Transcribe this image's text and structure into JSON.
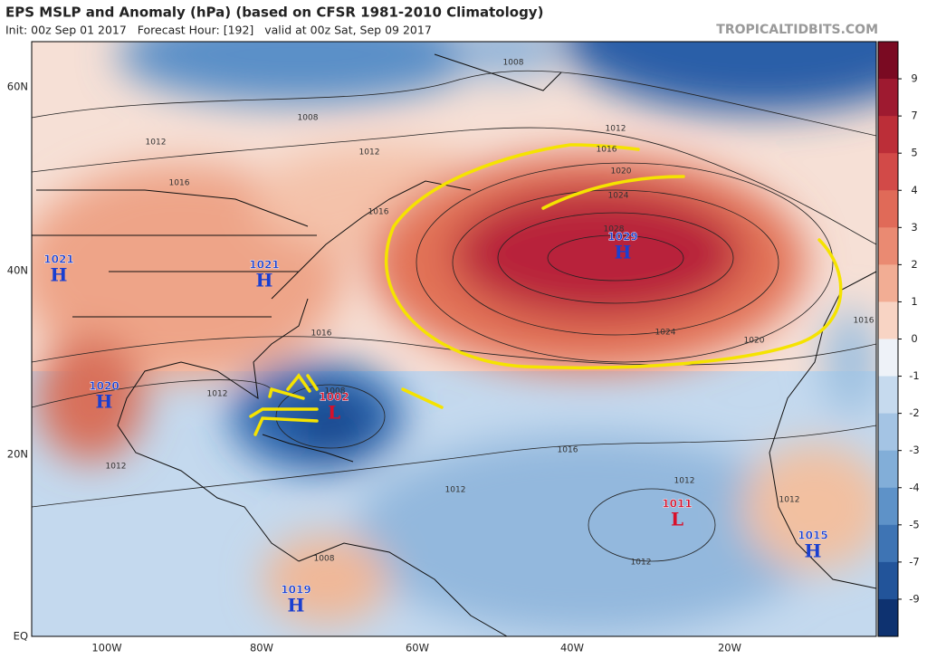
{
  "header": {
    "title": "EPS MSLP and Anomaly (hPa) (based on CFSR 1981-2010 Climatology)",
    "subtitle": "Init: 00z Sep 01 2017   Forecast Hour: [192]   valid at 00z Sat, Sep 09 2017",
    "brand": "TROPICALTIDBITS.COM"
  },
  "map": {
    "lat_labels": [
      "60N",
      "40N",
      "20N",
      "EQ"
    ],
    "lon_labels": [
      "100W",
      "80W",
      "60W",
      "40W",
      "20W"
    ],
    "centers": [
      {
        "value": "1021",
        "letter": "H"
      },
      {
        "value": "1021",
        "letter": "H"
      },
      {
        "value": "1020",
        "letter": "H"
      },
      {
        "value": "1002",
        "letter": "L"
      },
      {
        "value": "1029",
        "letter": "H"
      },
      {
        "value": "1011",
        "letter": "L"
      },
      {
        "value": "1015",
        "letter": "H"
      },
      {
        "value": "1019",
        "letter": "H"
      }
    ],
    "isobar_labels": [
      "1008",
      "1008",
      "1012",
      "1012",
      "1016",
      "1016",
      "1012",
      "1016",
      "1020",
      "1024",
      "1028",
      "1016",
      "1024",
      "1020",
      "1016",
      "1012",
      "1008",
      "1016",
      "1012",
      "1012",
      "1012",
      "1012",
      "1012",
      "1008"
    ]
  },
  "colorbar": {
    "ticks": [
      9,
      7,
      5,
      4,
      3,
      2,
      1,
      0,
      -1,
      -2,
      -3,
      -4,
      -5,
      -7,
      -9
    ]
  }
}
